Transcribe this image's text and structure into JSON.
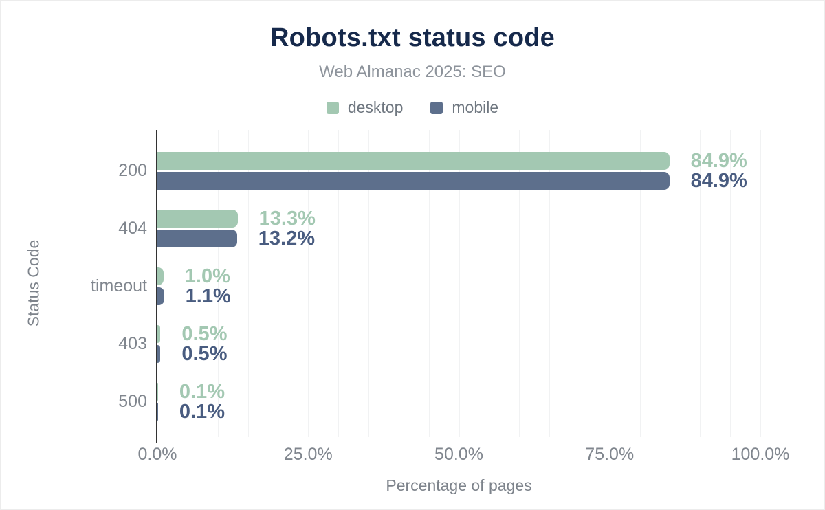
{
  "chart_data": {
    "type": "bar",
    "orientation": "horizontal",
    "title": "Robots.txt status code",
    "subtitle": "Web Almanac 2025: SEO",
    "categories": [
      "200",
      "404",
      "timeout",
      "403",
      "500"
    ],
    "series": [
      {
        "name": "desktop",
        "color": "#a3c8b2",
        "label_color": "#a3c8b2",
        "values": [
          84.9,
          13.3,
          1.0,
          0.5,
          0.1
        ]
      },
      {
        "name": "mobile",
        "color": "#5d6f8c",
        "label_color": "#495c80",
        "values": [
          84.9,
          13.2,
          1.1,
          0.5,
          0.1
        ]
      }
    ],
    "value_label_suffix": "%",
    "xlabel": "Percentage of pages",
    "ylabel": "Status Code",
    "xlim": [
      0,
      100
    ],
    "x_ticks": [
      {
        "value": 0,
        "label": "0.0%"
      },
      {
        "value": 25,
        "label": "25.0%"
      },
      {
        "value": 50,
        "label": "50.0%"
      },
      {
        "value": 75,
        "label": "75.0%"
      },
      {
        "value": 100,
        "label": "100.0%"
      }
    ],
    "gridlines": {
      "step": 5,
      "color": "#f1f2f3"
    },
    "legend_position": "top",
    "grid": "vertical-on"
  },
  "colors": {
    "title": "#16294b",
    "subtitle": "#8d939b",
    "legend_text": "#6f7780",
    "axis_text": "#80868e",
    "axis_line": "#333333",
    "background": "#ffffff"
  }
}
